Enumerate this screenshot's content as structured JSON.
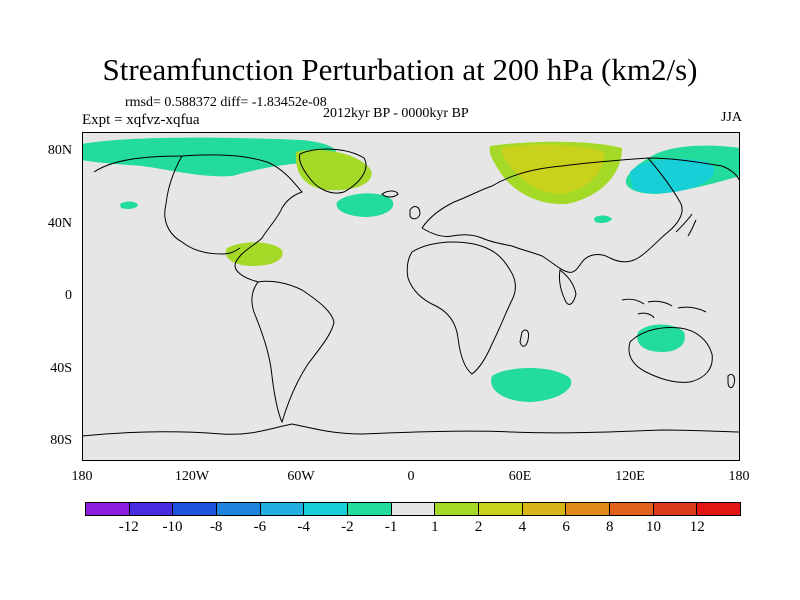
{
  "title": "Streamfunction Perturbation at 200 hPa (km2/s)",
  "stats_line": "rmsd= 0.588372 diff= -1.83452e-08",
  "experiment_line": "Expt = xqfvz-xqfua",
  "period_label": "2012kyr BP - 0000kyr BP",
  "season_label": "JJA",
  "lat_ticks": [
    "80N",
    "40N",
    "0",
    "40S",
    "80S"
  ],
  "lon_ticks": [
    "180",
    "120W",
    "60W",
    "0",
    "60E",
    "120E",
    "180"
  ],
  "colorbar": {
    "labels": [
      "-12",
      "-10",
      "-8",
      "-6",
      "-4",
      "-2",
      "-1",
      "1",
      "2",
      "4",
      "6",
      "8",
      "10",
      "12"
    ],
    "colors": [
      "#8f1fe0",
      "#4a2be0",
      "#2052e0",
      "#1e84dc",
      "#22aee0",
      "#18cfd8",
      "#23dc9c",
      "#e6e6e6",
      "#a5d927",
      "#c8d21c",
      "#d8b61a",
      "#e08b17",
      "#e0621c",
      "#dd3a1d",
      "#e21414"
    ]
  },
  "map_background_color": "#e6e6e6",
  "anomaly_colors": {
    "neg_minus1": "#23dc9c",
    "neg_minus2": "#18cfd8",
    "pos_1": "#a5d927",
    "pos_2": "#c8d21c"
  }
}
